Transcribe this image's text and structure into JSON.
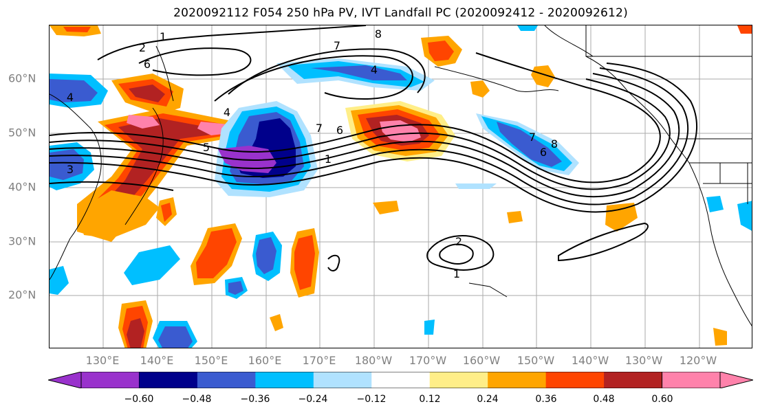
{
  "title": "2020092112 F054 250 hPa PV, IVT Landfall PC (2020092412 - 2020092612)",
  "map": {
    "lat_labels": [
      "60°N",
      "50°N",
      "40°N",
      "30°N",
      "20°N"
    ],
    "lon_labels": [
      "130°E",
      "140°E",
      "150°E",
      "160°E",
      "170°E",
      "180°W",
      "170°W",
      "160°W",
      "150°W",
      "140°W",
      "130°W",
      "120°W"
    ],
    "contour_labels": [
      "1",
      "2",
      "6",
      "4",
      "3",
      "5",
      "7",
      "6",
      "8",
      "4",
      "7",
      "8",
      "6",
      "4",
      "7",
      "1",
      "2",
      "1"
    ],
    "grid": true,
    "projection": "PlateCarree"
  },
  "colorbar": {
    "tick_labels": [
      "−0.60",
      "−0.48",
      "−0.36",
      "−0.24",
      "−0.12",
      "0.12",
      "0.24",
      "0.36",
      "0.48",
      "0.60"
    ],
    "colors": [
      "#9932cc",
      "#00008b",
      "#3a5bd0",
      "#00bfff",
      "#b0e2ff",
      "#ffffff",
      "#ffee88",
      "#ffa500",
      "#ff4500",
      "#b22222",
      "#ff82ab"
    ],
    "extend": "both"
  }
}
